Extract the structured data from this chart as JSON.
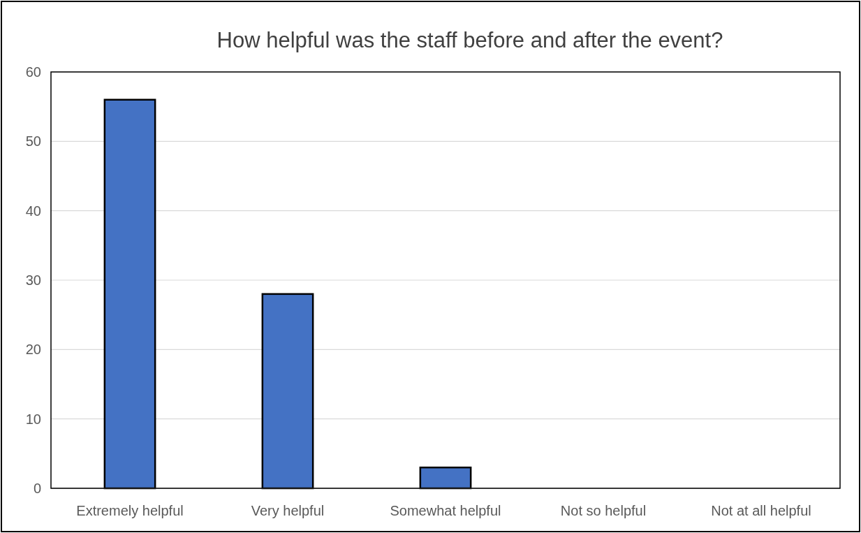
{
  "chart_data": {
    "type": "bar",
    "title": "How helpful was the staff before and after the event?",
    "categories": [
      "Extremely helpful",
      "Very helpful",
      "Somewhat helpful",
      "Not so helpful",
      "Not at all helpful"
    ],
    "values": [
      56,
      28,
      3,
      0,
      0
    ],
    "color": "#4472c4",
    "ylim": [
      0,
      60
    ],
    "yticks": [
      0,
      10,
      20,
      30,
      40,
      50,
      60
    ],
    "grid": "y"
  }
}
